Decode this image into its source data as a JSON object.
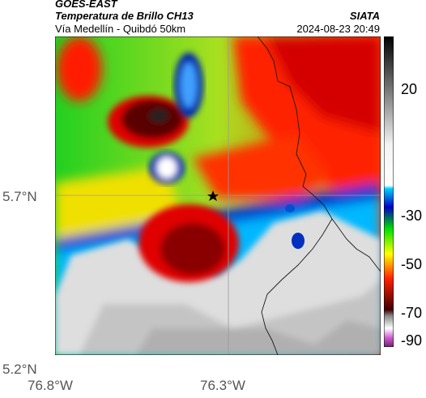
{
  "header": {
    "satellite": "GOES-EAST",
    "product": "Temperatura de Brillo CH13",
    "route": "Vía Medellín - Quibdó 50km",
    "agency": "SIATA",
    "datetime": "2024-08-23 20:49"
  },
  "map": {
    "lat_labels": [
      "5.7°N",
      "5.2°N"
    ],
    "lon_labels": [
      "76.8°W",
      "76.3°W"
    ],
    "marker_icon": "star-icon"
  },
  "colorbar": {
    "tick_labels": [
      "20",
      "-30",
      "-50",
      "-70",
      "-90"
    ],
    "colors": [
      "#000000",
      "#ffffff",
      "#00c8ff",
      "#0000c8",
      "#00ff00",
      "#ffff00",
      "#ff0000",
      "#600000",
      "#c040c0"
    ]
  }
}
